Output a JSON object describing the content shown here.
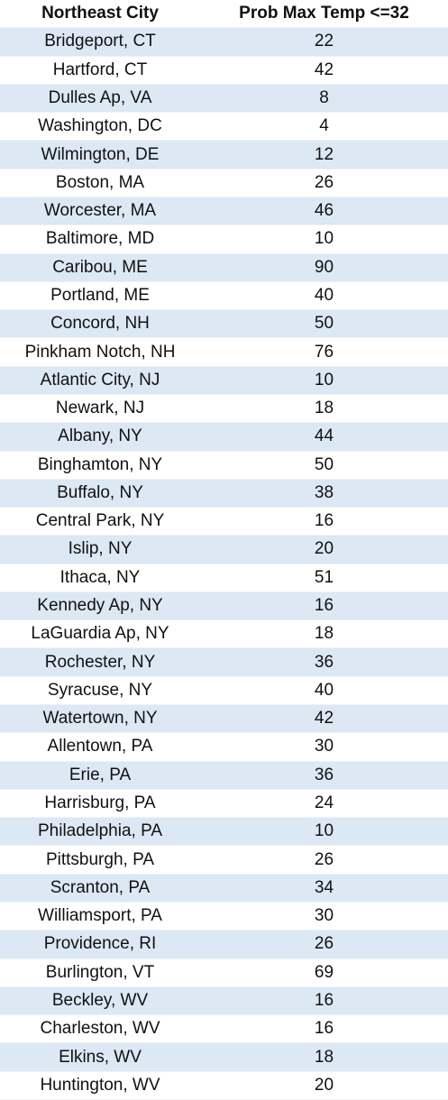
{
  "table": {
    "header": [
      "Northeast City",
      "Prob Max Temp <=32"
    ],
    "rows": [
      [
        "Bridgeport, CT",
        22
      ],
      [
        "Hartford, CT",
        42
      ],
      [
        "Dulles Ap, VA",
        8
      ],
      [
        "Washington, DC",
        4
      ],
      [
        "Wilmington, DE",
        12
      ],
      [
        "Boston, MA",
        26
      ],
      [
        "Worcester, MA",
        46
      ],
      [
        "Baltimore, MD",
        10
      ],
      [
        "Caribou, ME",
        90
      ],
      [
        "Portland, ME",
        40
      ],
      [
        "Concord, NH",
        50
      ],
      [
        "Pinkham Notch, NH",
        76
      ],
      [
        "Atlantic City, NJ",
        10
      ],
      [
        "Newark, NJ",
        18
      ],
      [
        "Albany, NY",
        44
      ],
      [
        "Binghamton, NY",
        50
      ],
      [
        "Buffalo, NY",
        38
      ],
      [
        "Central Park, NY",
        16
      ],
      [
        "Islip, NY",
        20
      ],
      [
        "Ithaca, NY",
        51
      ],
      [
        "Kennedy Ap, NY",
        16
      ],
      [
        "LaGuardia Ap, NY",
        18
      ],
      [
        "Rochester, NY",
        36
      ],
      [
        "Syracuse, NY",
        40
      ],
      [
        "Watertown, NY",
        42
      ],
      [
        "Allentown, PA",
        30
      ],
      [
        "Erie, PA",
        36
      ],
      [
        "Harrisburg, PA",
        24
      ],
      [
        "Philadelphia, PA",
        10
      ],
      [
        "Pittsburgh, PA",
        26
      ],
      [
        "Scranton, PA",
        34
      ],
      [
        "Williamsport, PA",
        30
      ],
      [
        "Providence, RI",
        26
      ],
      [
        "Burlington, VT",
        69
      ],
      [
        "Beckley, WV",
        16
      ],
      [
        "Charleston, WV",
        16
      ],
      [
        "Elkins, WV",
        18
      ],
      [
        "Huntington, WV",
        20
      ]
    ]
  }
}
